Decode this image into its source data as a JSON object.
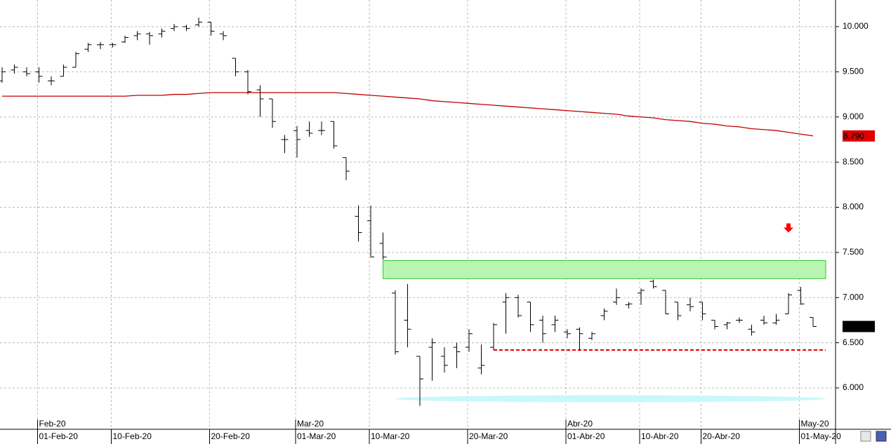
{
  "chart_data": {
    "type": "ohlc",
    "color": "#000000",
    "open": [
      9.4,
      9.52,
      9.5,
      9.5,
      9.4,
      9.45,
      9.55,
      9.75,
      9.8,
      9.8,
      9.83,
      9.9,
      9.92,
      9.92,
      9.98,
      10.0,
      10.02,
      10.05,
      9.92,
      9.65,
      9.5,
      9.3,
      9.2,
      8.75,
      8.85,
      8.85,
      8.85,
      8.95,
      8.55,
      7.9,
      7.85,
      7.6,
      7.05,
      6.75,
      6.35,
      6.45,
      6.35,
      6.45,
      6.45,
      6.22,
      6.45,
      6.95,
      7.0,
      6.95,
      6.75,
      6.7,
      6.62,
      6.65,
      6.55,
      6.8,
      6.95,
      6.92,
      7.05,
      7.18,
      7.08,
      6.95,
      6.92,
      6.95,
      6.75,
      6.7,
      6.75,
      6.65,
      6.75,
      6.72,
      6.82,
      7.08,
      6.78
    ],
    "high": [
      9.55,
      9.58,
      9.55,
      9.55,
      9.45,
      9.58,
      9.72,
      9.82,
      9.83,
      9.82,
      9.9,
      9.95,
      9.94,
      9.98,
      10.03,
      10.02,
      10.1,
      10.05,
      9.95,
      9.65,
      9.52,
      9.35,
      9.2,
      8.8,
      8.9,
      8.95,
      8.95,
      8.95,
      8.55,
      8.02,
      8.02,
      7.72,
      7.08,
      7.15,
      6.35,
      6.55,
      6.45,
      6.5,
      6.65,
      6.48,
      6.72,
      7.05,
      7.03,
      6.95,
      6.8,
      6.8,
      6.65,
      6.67,
      6.62,
      6.88,
      7.1,
      6.95,
      7.1,
      7.2,
      7.08,
      6.95,
      7.0,
      6.95,
      6.75,
      6.73,
      6.78,
      6.7,
      6.8,
      6.82,
      7.05,
      7.12,
      6.78
    ],
    "low": [
      9.38,
      9.48,
      9.45,
      9.38,
      9.35,
      9.45,
      9.55,
      9.72,
      9.75,
      9.77,
      9.82,
      9.85,
      9.8,
      9.88,
      9.95,
      9.95,
      10.0,
      9.9,
      9.85,
      9.45,
      9.25,
      9.0,
      8.88,
      8.6,
      8.55,
      8.78,
      8.8,
      8.65,
      8.3,
      7.62,
      7.45,
      7.42,
      6.37,
      6.45,
      5.8,
      6.08,
      6.17,
      6.22,
      6.4,
      6.15,
      6.42,
      6.6,
      6.78,
      6.62,
      6.5,
      6.62,
      6.55,
      6.42,
      6.53,
      6.75,
      6.92,
      6.88,
      6.92,
      7.1,
      6.82,
      6.75,
      6.85,
      6.75,
      6.65,
      6.65,
      6.72,
      6.58,
      6.7,
      6.7,
      6.82,
      6.92,
      6.68
    ],
    "close": [
      9.5,
      9.55,
      9.48,
      9.45,
      9.4,
      9.55,
      9.7,
      9.8,
      9.8,
      9.8,
      9.88,
      9.92,
      9.9,
      9.95,
      10.0,
      9.98,
      10.05,
      9.95,
      9.9,
      9.5,
      9.28,
      9.2,
      8.95,
      8.75,
      8.75,
      8.82,
      8.85,
      8.68,
      8.4,
      7.72,
      7.45,
      7.45,
      6.4,
      6.65,
      6.1,
      6.5,
      6.25,
      6.4,
      6.6,
      6.25,
      6.7,
      7.0,
      6.8,
      6.7,
      6.6,
      6.75,
      6.6,
      6.6,
      6.6,
      6.85,
      7.0,
      6.93,
      7.08,
      7.12,
      6.82,
      6.8,
      6.9,
      6.82,
      6.68,
      6.72,
      6.75,
      6.62,
      6.72,
      6.75,
      7.03,
      6.93,
      6.68
    ],
    "ma": {
      "color": "#c00000",
      "last_label": "8.790",
      "values": [
        9.23,
        9.23,
        9.23,
        9.23,
        9.23,
        9.23,
        9.23,
        9.23,
        9.23,
        9.23,
        9.23,
        9.24,
        9.24,
        9.24,
        9.25,
        9.25,
        9.26,
        9.27,
        9.27,
        9.27,
        9.27,
        9.27,
        9.27,
        9.27,
        9.27,
        9.27,
        9.27,
        9.27,
        9.26,
        9.25,
        9.24,
        9.23,
        9.22,
        9.21,
        9.2,
        9.18,
        9.17,
        9.16,
        9.15,
        9.14,
        9.13,
        9.12,
        9.11,
        9.1,
        9.09,
        9.08,
        9.07,
        9.06,
        9.05,
        9.04,
        9.03,
        9.01,
        9.0,
        8.99,
        8.97,
        8.96,
        8.95,
        8.93,
        8.92,
        8.9,
        8.89,
        8.87,
        8.86,
        8.85,
        8.83,
        8.81,
        8.79
      ]
    },
    "categories": [
      null,
      null,
      null,
      "01-Feb-20",
      null,
      null,
      null,
      null,
      null,
      "10-Feb-20",
      null,
      null,
      null,
      null,
      null,
      null,
      null,
      "20-Feb-20",
      null,
      null,
      null,
      null,
      null,
      null,
      "01-Mar-20",
      null,
      null,
      null,
      null,
      null,
      "10-Mar-20",
      null,
      null,
      null,
      null,
      null,
      null,
      null,
      "20-Mar-20",
      null,
      null,
      null,
      null,
      null,
      null,
      null,
      "01-Abr-20",
      null,
      null,
      null,
      null,
      null,
      "10-Abr-20",
      null,
      null,
      null,
      null,
      "20-Abr-20",
      null,
      null,
      null,
      null,
      null,
      null,
      null,
      "01-May-20",
      null
    ],
    "month_labels": [
      null,
      null,
      null,
      "Feb-20",
      null,
      null,
      null,
      null,
      null,
      null,
      null,
      null,
      null,
      null,
      null,
      null,
      null,
      null,
      null,
      null,
      null,
      null,
      null,
      null,
      "Mar-20",
      null,
      null,
      null,
      null,
      null,
      null,
      null,
      null,
      null,
      null,
      null,
      null,
      null,
      null,
      null,
      null,
      null,
      null,
      null,
      null,
      null,
      "Abr-20",
      null,
      null,
      null,
      null,
      null,
      null,
      null,
      null,
      null,
      null,
      null,
      null,
      null,
      null,
      null,
      null,
      null,
      null,
      "May-20",
      null
    ],
    "ylim": [
      5.542,
      10.295
    ],
    "yticks": [
      {
        "value": 6,
        "label": "6.000"
      },
      {
        "value": 6.5,
        "label": "6.500"
      },
      {
        "value": 7,
        "label": "7.000"
      },
      {
        "value": 7.5,
        "label": "7.500"
      },
      {
        "value": 8,
        "label": "8.000"
      },
      {
        "value": 8.5,
        "label": "8.500"
      },
      {
        "value": 9,
        "label": "9.000"
      },
      {
        "value": 9.5,
        "label": "9.500"
      },
      {
        "value": 10,
        "label": "10.000"
      }
    ],
    "grid": true,
    "zone": {
      "ylim": [
        7.21,
        7.41
      ],
      "start": 31,
      "color": "#b8f5b0",
      "edge": "#2ec82e"
    },
    "support": {
      "value": 6.42,
      "start": 40,
      "color": "#e00000"
    },
    "ellipse": {
      "value": 5.88,
      "start": 32,
      "color": "#c8f8fa"
    },
    "arrow": {
      "value": 7.72,
      "index": 64,
      "color": "#ff0000"
    }
  }
}
